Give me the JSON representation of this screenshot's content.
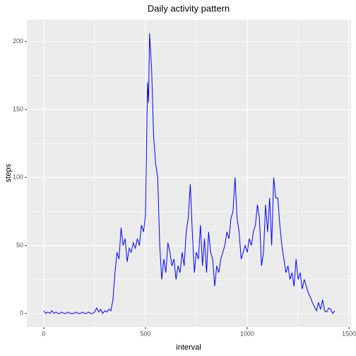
{
  "chart_data": {
    "type": "line",
    "title": "Daily activity pattern",
    "x_label": "interval",
    "y_label": "steps",
    "x": [
      0,
      10,
      20,
      30,
      40,
      50,
      60,
      70,
      80,
      90,
      100,
      110,
      120,
      130,
      140,
      150,
      160,
      170,
      180,
      190,
      200,
      210,
      220,
      230,
      240,
      250,
      260,
      270,
      280,
      290,
      300,
      310,
      320,
      330,
      340,
      350,
      360,
      370,
      380,
      390,
      400,
      410,
      420,
      430,
      440,
      450,
      460,
      470,
      480,
      490,
      500,
      510,
      515,
      520,
      530,
      540,
      550,
      560,
      570,
      580,
      590,
      600,
      610,
      620,
      630,
      640,
      650,
      660,
      670,
      680,
      690,
      700,
      710,
      720,
      730,
      740,
      750,
      760,
      770,
      780,
      790,
      800,
      810,
      820,
      830,
      840,
      850,
      860,
      870,
      880,
      890,
      900,
      910,
      920,
      930,
      940,
      950,
      960,
      970,
      980,
      990,
      1000,
      1010,
      1020,
      1030,
      1040,
      1050,
      1060,
      1070,
      1080,
      1090,
      1100,
      1110,
      1120,
      1130,
      1140,
      1150,
      1160,
      1170,
      1180,
      1190,
      1200,
      1210,
      1220,
      1230,
      1240,
      1250,
      1260,
      1270,
      1280,
      1290,
      1300,
      1310,
      1320,
      1330,
      1340,
      1350,
      1360,
      1370,
      1380,
      1390,
      1400,
      1410,
      1420,
      1430
    ],
    "series": [
      {
        "name": "steps",
        "color": "#0000ff",
        "values": [
          2,
          0,
          1,
          0,
          2,
          0,
          1,
          0,
          0,
          1,
          0,
          0,
          1,
          0,
          0,
          0,
          1,
          0,
          0,
          1,
          0,
          0,
          1,
          0,
          0,
          1,
          4,
          1,
          3,
          0,
          2,
          1,
          3,
          2,
          10,
          30,
          45,
          40,
          63,
          50,
          55,
          38,
          48,
          45,
          52,
          48,
          55,
          50,
          65,
          60,
          72,
          170,
          155,
          206,
          180,
          130,
          110,
          100,
          50,
          25,
          40,
          30,
          52,
          45,
          35,
          40,
          25,
          35,
          30,
          45,
          35,
          60,
          70,
          95,
          60,
          30,
          45,
          40,
          65,
          35,
          55,
          30,
          60,
          45,
          40,
          20,
          35,
          30,
          40,
          45,
          50,
          60,
          55,
          70,
          75,
          100,
          70,
          60,
          40,
          45,
          50,
          45,
          55,
          50,
          60,
          65,
          80,
          70,
          35,
          45,
          80,
          60,
          85,
          50,
          100,
          85,
          85,
          65,
          50,
          40,
          30,
          35,
          25,
          30,
          20,
          40,
          25,
          30,
          18,
          25,
          20,
          15,
          12,
          8,
          5,
          2,
          8,
          3,
          10,
          2,
          1,
          4,
          3,
          0,
          2
        ]
      }
    ],
    "xlim": [
      -83,
      1510
    ],
    "ylim": [
      -10,
      216
    ],
    "xticks": [
      0,
      500,
      1000,
      1500
    ],
    "yticks": [
      0,
      50,
      100,
      150,
      200
    ],
    "grid": true
  }
}
